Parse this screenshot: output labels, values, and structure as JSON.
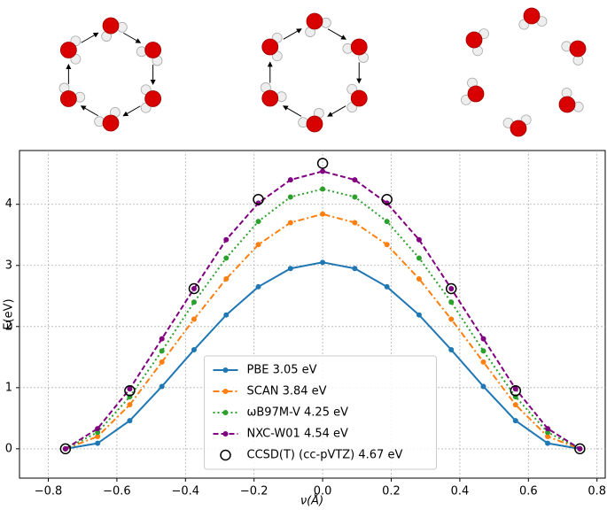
{
  "chart_data": {
    "type": "line",
    "x_label": "ν(Å)",
    "y_label": "E(eV)",
    "x": [
      -0.75,
      -0.65625,
      -0.5625,
      -0.46875,
      -0.375,
      -0.28125,
      -0.1875,
      -0.09375,
      0,
      0.09375,
      0.1875,
      0.28125,
      0.375,
      0.46875,
      0.5625,
      0.65625,
      0.75
    ],
    "series": [
      {
        "name": "PBE 3.05 eV",
        "color": "#1f77b4",
        "linestyle": "solid",
        "values": [
          0,
          0.09,
          0.46,
          1.02,
          1.62,
          2.19,
          2.65,
          2.95,
          3.05,
          2.95,
          2.65,
          2.19,
          1.62,
          1.02,
          0.46,
          0.09,
          0
        ]
      },
      {
        "name": "SCAN 3.84 eV",
        "color": "#ff7f0e",
        "linestyle": "dashdot",
        "values": [
          0,
          0.2,
          0.72,
          1.42,
          2.12,
          2.78,
          3.34,
          3.7,
          3.84,
          3.7,
          3.34,
          2.78,
          2.12,
          1.42,
          0.72,
          0.2,
          0
        ]
      },
      {
        "name": "ωB97M-V 4.25 eV",
        "color": "#2ca02c",
        "linestyle": "dotted",
        "values": [
          0,
          0.27,
          0.85,
          1.6,
          2.4,
          3.12,
          3.72,
          4.12,
          4.25,
          4.12,
          3.72,
          3.12,
          2.4,
          1.6,
          0.85,
          0.27,
          0
        ]
      },
      {
        "name": "NXC-W01 4.54 eV",
        "color": "#800080",
        "linestyle": "dashed",
        "values": [
          0,
          0.33,
          0.98,
          1.8,
          2.62,
          3.42,
          4.02,
          4.4,
          4.54,
          4.4,
          4.02,
          3.42,
          2.62,
          1.8,
          0.98,
          0.33,
          0
        ]
      },
      {
        "name": "CCSD(T) (cc-pVTZ) 4.67 eV",
        "color": "#000000",
        "linestyle": "none",
        "marker": "open-circle",
        "values": [
          0,
          null,
          0.95,
          null,
          2.62,
          null,
          4.08,
          null,
          4.67,
          null,
          4.08,
          null,
          2.62,
          null,
          0.95,
          null,
          0
        ]
      }
    ],
    "xlim": [
      -0.884,
      0.824
    ],
    "ylim": [
      -0.48,
      4.88
    ],
    "xticks": [
      {
        "value": -0.8,
        "label": "−0.8"
      },
      {
        "value": -0.6,
        "label": "−0.6"
      },
      {
        "value": -0.4,
        "label": "−0.4"
      },
      {
        "value": -0.2,
        "label": "−0.2"
      },
      {
        "value": 0,
        "label": "0.0"
      },
      0.2,
      0.4,
      0.6,
      0.8
    ],
    "yticks": [
      0,
      1,
      2,
      3,
      4
    ],
    "grid": true,
    "legend": "lower center"
  }
}
